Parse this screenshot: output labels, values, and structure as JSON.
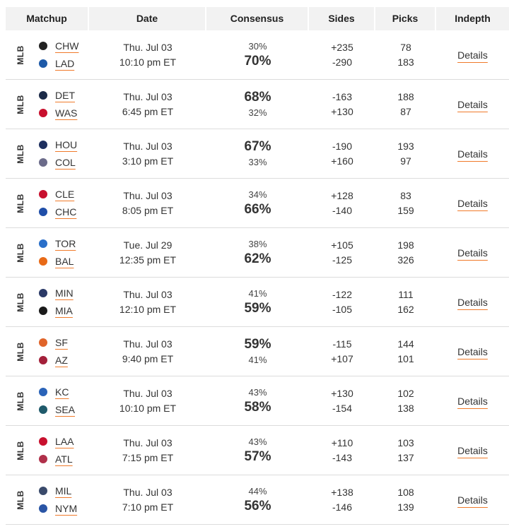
{
  "header": {
    "matchup": "Matchup",
    "date": "Date",
    "consensus": "Consensus",
    "sides": "Sides",
    "picks": "Picks",
    "indepth": "Indepth"
  },
  "games": [
    {
      "league": "MLB",
      "away": {
        "abbr": "CHW",
        "icon": "white-sox-logo-icon",
        "color": "#222222"
      },
      "home": {
        "abbr": "LAD",
        "icon": "dodgers-logo-icon",
        "color": "#1e5aa8"
      },
      "date": "Thu. Jul 03",
      "time": "10:10 pm ET",
      "away_pct": "30%",
      "home_pct": "70%",
      "favored": "home",
      "away_side": "+235",
      "home_side": "-290",
      "away_picks": "78",
      "home_picks": "183",
      "details": "Details"
    },
    {
      "league": "MLB",
      "away": {
        "abbr": "DET",
        "icon": "tigers-logo-icon",
        "color": "#1b2a47"
      },
      "home": {
        "abbr": "WAS",
        "icon": "nationals-logo-icon",
        "color": "#c8102e"
      },
      "date": "Thu. Jul 03",
      "time": "6:45 pm ET",
      "away_pct": "68%",
      "home_pct": "32%",
      "favored": "away",
      "away_side": "-163",
      "home_side": "+130",
      "away_picks": "188",
      "home_picks": "87",
      "details": "Details"
    },
    {
      "league": "MLB",
      "away": {
        "abbr": "HOU",
        "icon": "astros-logo-icon",
        "color": "#1d2f5e"
      },
      "home": {
        "abbr": "COL",
        "icon": "rockies-logo-icon",
        "color": "#6b6b8a"
      },
      "date": "Thu. Jul 03",
      "time": "3:10 pm ET",
      "away_pct": "67%",
      "home_pct": "33%",
      "favored": "away",
      "away_side": "-190",
      "home_side": "+160",
      "away_picks": "193",
      "home_picks": "97",
      "details": "Details"
    },
    {
      "league": "MLB",
      "away": {
        "abbr": "CLE",
        "icon": "guardians-logo-icon",
        "color": "#c8102e"
      },
      "home": {
        "abbr": "CHC",
        "icon": "cubs-logo-icon",
        "color": "#1f4ea8"
      },
      "date": "Thu. Jul 03",
      "time": "8:05 pm ET",
      "away_pct": "34%",
      "home_pct": "66%",
      "favored": "home",
      "away_side": "+128",
      "home_side": "-140",
      "away_picks": "83",
      "home_picks": "159",
      "details": "Details"
    },
    {
      "league": "MLB",
      "away": {
        "abbr": "TOR",
        "icon": "blue-jays-logo-icon",
        "color": "#2a6fc9"
      },
      "home": {
        "abbr": "BAL",
        "icon": "orioles-logo-icon",
        "color": "#e86a17"
      },
      "date": "Tue. Jul 29",
      "time": "12:35 pm ET",
      "away_pct": "38%",
      "home_pct": "62%",
      "favored": "home",
      "away_side": "+105",
      "home_side": "-125",
      "away_picks": "198",
      "home_picks": "326",
      "details": "Details"
    },
    {
      "league": "MLB",
      "away": {
        "abbr": "MIN",
        "icon": "twins-logo-icon",
        "color": "#2b3a67"
      },
      "home": {
        "abbr": "MIA",
        "icon": "marlins-logo-icon",
        "color": "#1a1a1a"
      },
      "date": "Thu. Jul 03",
      "time": "12:10 pm ET",
      "away_pct": "41%",
      "home_pct": "59%",
      "favored": "home",
      "away_side": "-122",
      "home_side": "-105",
      "away_picks": "111",
      "home_picks": "162",
      "details": "Details"
    },
    {
      "league": "MLB",
      "away": {
        "abbr": "SF",
        "icon": "giants-logo-icon",
        "color": "#e0642a"
      },
      "home": {
        "abbr": "AZ",
        "icon": "diamondbacks-logo-icon",
        "color": "#a3203a"
      },
      "date": "Thu. Jul 03",
      "time": "9:40 pm ET",
      "away_pct": "59%",
      "home_pct": "41%",
      "favored": "away",
      "away_side": "-115",
      "home_side": "+107",
      "away_picks": "144",
      "home_picks": "101",
      "details": "Details"
    },
    {
      "league": "MLB",
      "away": {
        "abbr": "KC",
        "icon": "royals-logo-icon",
        "color": "#2a63b8"
      },
      "home": {
        "abbr": "SEA",
        "icon": "mariners-logo-icon",
        "color": "#1f5a6b"
      },
      "date": "Thu. Jul 03",
      "time": "10:10 pm ET",
      "away_pct": "43%",
      "home_pct": "58%",
      "favored": "home",
      "away_side": "+130",
      "home_side": "-154",
      "away_picks": "102",
      "home_picks": "138",
      "details": "Details"
    },
    {
      "league": "MLB",
      "away": {
        "abbr": "LAA",
        "icon": "angels-logo-icon",
        "color": "#c8102e"
      },
      "home": {
        "abbr": "ATL",
        "icon": "braves-logo-icon",
        "color": "#b0304a"
      },
      "date": "Thu. Jul 03",
      "time": "7:15 pm ET",
      "away_pct": "43%",
      "home_pct": "57%",
      "favored": "home",
      "away_side": "+110",
      "home_side": "-143",
      "away_picks": "103",
      "home_picks": "137",
      "details": "Details"
    },
    {
      "league": "MLB",
      "away": {
        "abbr": "MIL",
        "icon": "brewers-logo-icon",
        "color": "#3a4a6b"
      },
      "home": {
        "abbr": "NYM",
        "icon": "mets-logo-icon",
        "color": "#2a55a5"
      },
      "date": "Thu. Jul 03",
      "time": "7:10 pm ET",
      "away_pct": "44%",
      "home_pct": "56%",
      "favored": "home",
      "away_side": "+138",
      "home_side": "-146",
      "away_picks": "108",
      "home_picks": "139",
      "details": "Details"
    }
  ]
}
